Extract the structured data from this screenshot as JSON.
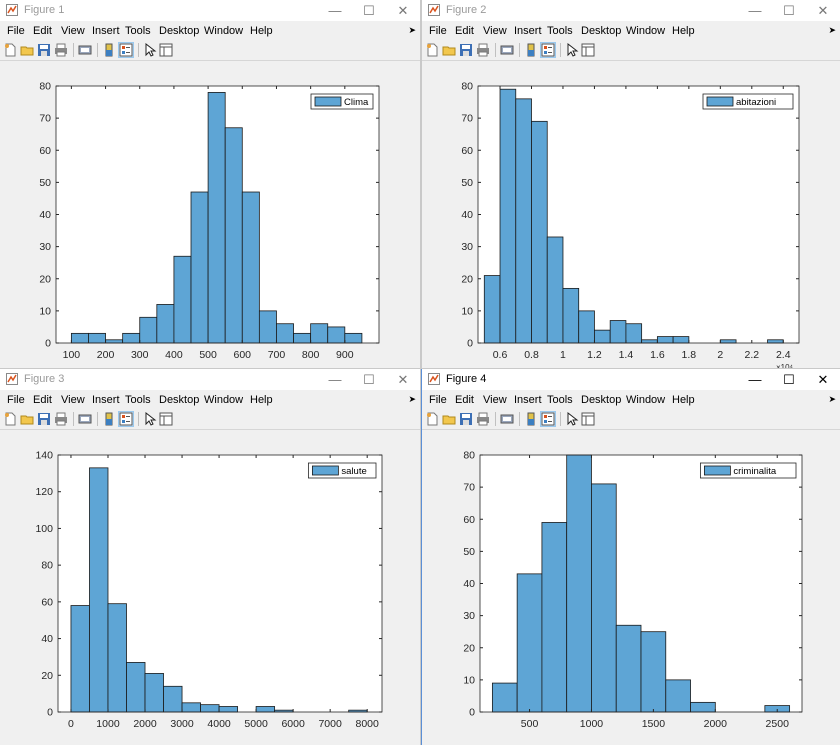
{
  "menu": [
    "File",
    "Edit",
    "View",
    "Insert",
    "Tools",
    "Desktop",
    "Window",
    "Help"
  ],
  "window_controls": {
    "minimize": "—",
    "maximize": "☐",
    "close": "✕"
  },
  "toolbar_icons": [
    "new-figure-icon",
    "open-file-icon",
    "save-icon",
    "print-icon",
    "print-preview-icon",
    "insert-colorbar-icon",
    "insert-legend-icon",
    "pointer-icon",
    "property-inspector-icon"
  ],
  "colors": {
    "bar_fill": "#5ea5d5",
    "bar_edge": "#1a1a1a",
    "active_border": "#5b8fd6"
  },
  "figures": [
    {
      "title": "Figure 1",
      "active": false,
      "chart_data": {
        "type": "bar",
        "title": "",
        "xlabel": "",
        "ylabel": "",
        "legend": {
          "label": "Clima",
          "placement": "top-right"
        },
        "xlim": [
          55,
          1000
        ],
        "ylim": [
          0,
          80
        ],
        "xticks": [
          100,
          200,
          300,
          400,
          500,
          600,
          700,
          800,
          900
        ],
        "yticks": [
          0,
          10,
          20,
          30,
          40,
          50,
          60,
          70,
          80
        ],
        "bin_edges": [
          100,
          150,
          200,
          250,
          300,
          350,
          400,
          450,
          500,
          550,
          600,
          650,
          700,
          750,
          800,
          850,
          900,
          950
        ],
        "values": [
          3,
          3,
          1,
          3,
          8,
          12,
          27,
          47,
          78,
          67,
          47,
          10,
          6,
          3,
          6,
          5,
          3
        ]
      }
    },
    {
      "title": "Figure 2",
      "active": false,
      "chart_data": {
        "type": "bar",
        "title": "",
        "xlabel": "",
        "ylabel": "",
        "legend": {
          "label": "abitazioni",
          "placement": "top-right"
        },
        "x_exponent_label": "×10⁴",
        "xlim": [
          0.46,
          2.5
        ],
        "ylim": [
          0,
          80
        ],
        "xticks": [
          0.6,
          0.8,
          1,
          1.2,
          1.4,
          1.6,
          1.8,
          2,
          2.2,
          2.4
        ],
        "yticks": [
          0,
          10,
          20,
          30,
          40,
          50,
          60,
          70,
          80
        ],
        "bin_edges": [
          0.5,
          0.6,
          0.7,
          0.8,
          0.9,
          1.0,
          1.1,
          1.2,
          1.3,
          1.4,
          1.5,
          1.6,
          1.7,
          1.8,
          1.9,
          2.0,
          2.1,
          2.2,
          2.3,
          2.4,
          2.5
        ],
        "values": [
          21,
          79,
          76,
          69,
          33,
          17,
          10,
          4,
          7,
          6,
          1,
          2,
          2,
          0,
          0,
          1,
          0,
          0,
          1,
          0
        ]
      }
    },
    {
      "title": "Figure 3",
      "active": false,
      "chart_data": {
        "type": "bar",
        "title": "",
        "xlabel": "",
        "ylabel": "",
        "legend": {
          "label": "salute",
          "placement": "top-right"
        },
        "xlim": [
          -350,
          8400
        ],
        "ylim": [
          0,
          140
        ],
        "xticks": [
          0,
          1000,
          2000,
          3000,
          4000,
          5000,
          6000,
          7000,
          8000
        ],
        "yticks": [
          0,
          20,
          40,
          60,
          80,
          100,
          120,
          140
        ],
        "bin_edges": [
          0,
          500,
          1000,
          1500,
          2000,
          2500,
          3000,
          3500,
          4000,
          4500,
          5000,
          5500,
          6000,
          6500,
          7000,
          7500,
          8000
        ],
        "values": [
          58,
          133,
          59,
          27,
          21,
          14,
          5,
          4,
          3,
          0,
          3,
          1,
          0,
          0,
          0,
          1
        ]
      }
    },
    {
      "title": "Figure 4",
      "active": true,
      "chart_data": {
        "type": "bar",
        "title": "",
        "xlabel": "",
        "ylabel": "",
        "legend": {
          "label": "criminalita",
          "placement": "top-right"
        },
        "xlim": [
          100,
          2700
        ],
        "ylim": [
          0,
          80
        ],
        "xticks": [
          500,
          1000,
          1500,
          2000,
          2500
        ],
        "yticks": [
          0,
          10,
          20,
          30,
          40,
          50,
          60,
          70,
          80
        ],
        "bin_edges": [
          200,
          400,
          600,
          800,
          1000,
          1200,
          1400,
          1600,
          1800,
          2000,
          2200,
          2400,
          2600
        ],
        "values": [
          9,
          43,
          59,
          80,
          71,
          27,
          25,
          10,
          3,
          0,
          0,
          2
        ]
      }
    }
  ]
}
